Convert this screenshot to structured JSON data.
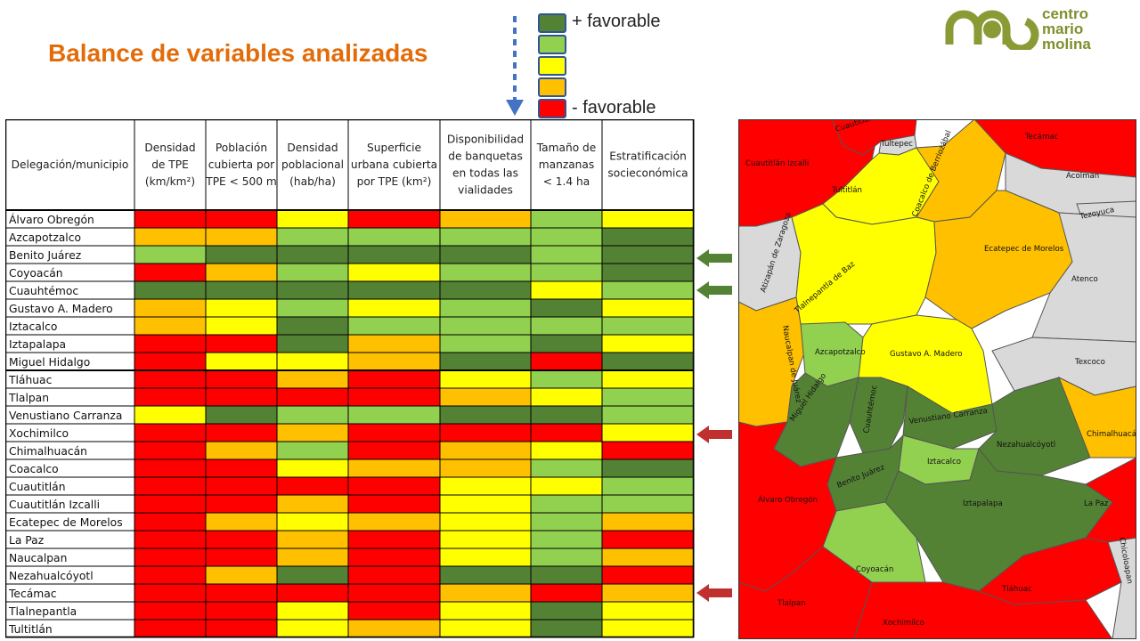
{
  "title": "Balance de variables analizadas",
  "legend": {
    "top_label": "+ favorable",
    "bottom_label": "- favorable",
    "colors": [
      "#548235",
      "#92D050",
      "#FFFF00",
      "#FFC000",
      "#FF0000"
    ]
  },
  "logo": {
    "line1": "centro",
    "line2": "mario",
    "line3": "molina",
    "color": "#7F8F2C"
  },
  "chart_data": {
    "type": "table",
    "title": "Balance de variables analizadas",
    "scale": [
      "+ favorable",
      "",
      "",
      "",
      "- favorable"
    ],
    "color_scale": {
      "5": "#548235",
      "4": "#92D050",
      "3": "#FFFF00",
      "2": "#FFC000",
      "1": "#FF0000"
    },
    "columns": [
      "Delegación/municipio",
      "Densidad de TPE (km/km²)",
      "Población cubierta por TPE < 500 m",
      "Densidad poblacional (hab/ha)",
      "Superficie urbana cubierta por TPE (km²)",
      "Disponibilidad de banquetas en todas las vialidades",
      "Tamaño de manzanas < 1.4 ha",
      "Estratificación socieconómica"
    ],
    "header_lines": [
      [
        "Delegación/municipio"
      ],
      [
        "Densidad",
        "de TPE",
        "(km/km²)"
      ],
      [
        "Población",
        "cubierta por",
        "TPE < 500 m"
      ],
      [
        "Densidad",
        "poblacional",
        "(hab/ha)"
      ],
      [
        "Superficie",
        "urbana cubierta",
        "por TPE (km²)"
      ],
      [
        "Disponibilidad",
        "de banquetas",
        "en todas las",
        "vialidades"
      ],
      [
        "Tamaño de",
        "manzanas",
        "< 1.4 ha"
      ],
      [
        "Estratificación",
        "socieconómica"
      ]
    ],
    "rows": [
      {
        "name": "Álvaro Obregón",
        "values": [
          1,
          1,
          3,
          1,
          2,
          4,
          3
        ]
      },
      {
        "name": "Azcapotzalco",
        "values": [
          2,
          2,
          4,
          4,
          4,
          4,
          5
        ]
      },
      {
        "name": "Benito Juárez",
        "values": [
          4,
          5,
          5,
          5,
          5,
          4,
          5
        ]
      },
      {
        "name": "Coyoacán",
        "values": [
          1,
          2,
          4,
          3,
          4,
          4,
          5
        ]
      },
      {
        "name": "Cuauhtémoc",
        "values": [
          5,
          5,
          5,
          5,
          5,
          3,
          4
        ]
      },
      {
        "name": "Gustavo A. Madero",
        "values": [
          2,
          3,
          4,
          3,
          4,
          5,
          3
        ]
      },
      {
        "name": "Iztacalco",
        "values": [
          2,
          3,
          5,
          4,
          4,
          4,
          4
        ]
      },
      {
        "name": "Iztapalapa",
        "values": [
          1,
          1,
          5,
          2,
          4,
          5,
          3
        ]
      },
      {
        "name": "Miguel Hidalgo",
        "values": [
          1,
          3,
          3,
          2,
          5,
          1,
          5
        ]
      },
      {
        "name": "Tláhuac",
        "values": [
          1,
          1,
          2,
          1,
          3,
          4,
          3
        ]
      },
      {
        "name": "Tlalpan",
        "values": [
          1,
          1,
          1,
          1,
          2,
          3,
          4
        ]
      },
      {
        "name": "Venustiano Carranza",
        "values": [
          3,
          5,
          4,
          4,
          5,
          5,
          4
        ]
      },
      {
        "name": "Xochimilco",
        "values": [
          1,
          1,
          2,
          1,
          1,
          1,
          3
        ]
      },
      {
        "name": "Chimalhuacán",
        "values": [
          1,
          2,
          4,
          1,
          2,
          3,
          1
        ]
      },
      {
        "name": "Coacalco",
        "values": [
          1,
          1,
          3,
          2,
          2,
          4,
          5
        ]
      },
      {
        "name": "Cuautitlán",
        "values": [
          1,
          1,
          1,
          1,
          3,
          3,
          4
        ]
      },
      {
        "name": "Cuautitlán Izcalli",
        "values": [
          1,
          1,
          2,
          1,
          3,
          4,
          4
        ]
      },
      {
        "name": "Ecatepec de Morelos",
        "values": [
          1,
          2,
          3,
          2,
          3,
          4,
          2
        ]
      },
      {
        "name": "La Paz",
        "values": [
          1,
          1,
          2,
          1,
          3,
          4,
          1
        ]
      },
      {
        "name": "Naucalpan",
        "values": [
          1,
          1,
          2,
          1,
          3,
          4,
          2
        ]
      },
      {
        "name": "Nezahualcóyotl",
        "values": [
          1,
          2,
          5,
          1,
          5,
          5,
          1
        ]
      },
      {
        "name": "Tecámac",
        "values": [
          1,
          1,
          1,
          1,
          2,
          1,
          2
        ]
      },
      {
        "name": "Tlalnepantla",
        "values": [
          1,
          1,
          3,
          1,
          3,
          5,
          3
        ]
      },
      {
        "name": "Tultitlán",
        "values": [
          1,
          1,
          3,
          2,
          3,
          5,
          3
        ]
      }
    ]
  },
  "map": {
    "regions": [
      {
        "label": "Cuautitlán Izcalli",
        "value": 1
      },
      {
        "label": "Cuautitlán",
        "value": 1
      },
      {
        "label": "Tultepec",
        "value": null
      },
      {
        "label": "Tultitlán",
        "value": 3
      },
      {
        "label": "Coacalco de Berriozábal",
        "value": 2
      },
      {
        "label": "Tecámac",
        "value": 1
      },
      {
        "label": "Acolman",
        "value": null
      },
      {
        "label": "Tezoyuca",
        "value": null
      },
      {
        "label": "Atizapán de Zaragoza",
        "value": null
      },
      {
        "label": "Tlalnepantla de Baz",
        "value": 3
      },
      {
        "label": "Ecatepec de Morelos",
        "value": 2
      },
      {
        "label": "Atenco",
        "value": null
      },
      {
        "label": "Naucalpan de Juárez",
        "value": 2
      },
      {
        "label": "Azcapotzalco",
        "value": 4
      },
      {
        "label": "Gustavo A. Madero",
        "value": 3
      },
      {
        "label": "Texcoco",
        "value": null
      },
      {
        "label": "Miguel Hidalgo",
        "value": 5
      },
      {
        "label": "Cuauhtémoc",
        "value": 5
      },
      {
        "label": "Venustiano Carranza",
        "value": 5
      },
      {
        "label": "Nezahualcóyotl",
        "value": 5
      },
      {
        "label": "Chimalhuacán",
        "value": 2
      },
      {
        "label": "Iztacalco",
        "value": 4
      },
      {
        "label": "Benito Juárez",
        "value": 5
      },
      {
        "label": "Álvaro Obregón",
        "value": 1
      },
      {
        "label": "Iztapalapa",
        "value": 5
      },
      {
        "label": "La Paz",
        "value": 1
      },
      {
        "label": "Coyoacán",
        "value": 4
      },
      {
        "label": "Chicoloapan",
        "value": null
      },
      {
        "label": "Tláhuac",
        "value": 1
      },
      {
        "label": "Tlalpan",
        "value": 1
      },
      {
        "label": "Xochimilco",
        "value": 1
      }
    ]
  },
  "arrows": [
    {
      "color": "#548235",
      "direction": "left"
    },
    {
      "color": "#548235",
      "direction": "left"
    },
    {
      "color": "#C0302F",
      "direction": "left"
    },
    {
      "color": "#C0302F",
      "direction": "left"
    }
  ]
}
